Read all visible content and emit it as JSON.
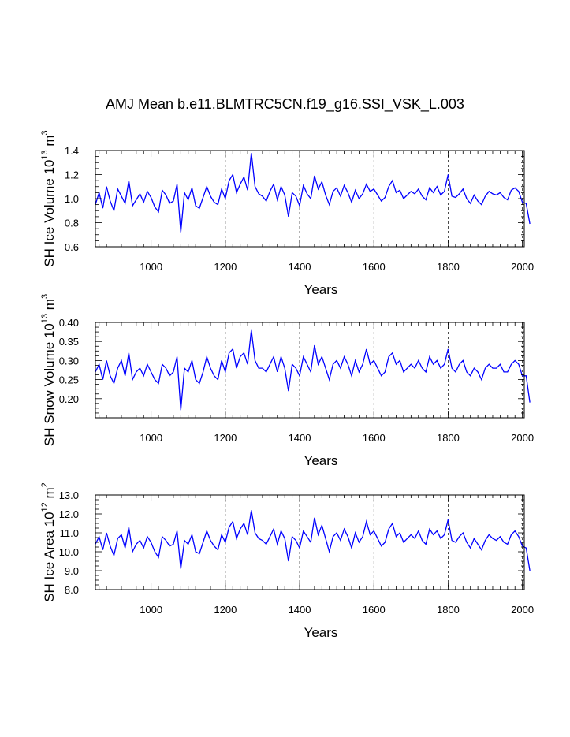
{
  "title": "AMJ Mean b.e11.BLMTRC5CN.f19_g16.SSI_VSK_L.003",
  "chart_data": [
    {
      "type": "line",
      "ylabel": "SH Ice Volume 10",
      "ylabel_exp": "13",
      "ylabel_unit": " m",
      "ylabel_unit_exp": "3",
      "xlabel": "Years",
      "xlim": [
        850,
        2005
      ],
      "ylim": [
        0.6,
        1.4
      ],
      "xticks": [
        1000,
        1200,
        1400,
        1600,
        1800,
        2000
      ],
      "xtick_labels": [
        "1000",
        "1200",
        "1400",
        "1600",
        "1800",
        "2000"
      ],
      "yticks": [
        0.6,
        0.8,
        1.0,
        1.2,
        1.4
      ],
      "ytick_labels": [
        "0.6",
        "0.8",
        "1.0",
        "1.2",
        "1.4"
      ],
      "grid": "dashed vertical at x ticks",
      "color": "#0000ff",
      "series": [
        {
          "x_start": 850,
          "x_step": 10,
          "values": [
            0.95,
            1.05,
            0.92,
            1.1,
            0.98,
            0.9,
            1.08,
            1.02,
            0.96,
            1.15,
            0.94,
            0.99,
            1.04,
            0.97,
            1.06,
            1.01,
            0.93,
            0.89,
            1.07,
            1.03,
            0.96,
            0.98,
            1.12,
            0.72,
            1.05,
            0.99,
            1.09,
            0.94,
            0.92,
            1.01,
            1.1,
            1.02,
            0.97,
            0.95,
            1.08,
            1.0,
            1.15,
            1.2,
            1.05,
            1.12,
            1.18,
            1.07,
            1.38,
            1.1,
            1.04,
            1.02,
            0.98,
            1.06,
            1.12,
            0.99,
            1.1,
            1.03,
            0.85,
            1.05,
            1.02,
            0.94,
            1.11,
            1.04,
            1.0,
            1.19,
            1.08,
            1.14,
            1.03,
            0.95,
            1.06,
            1.09,
            1.02,
            1.11,
            1.05,
            0.97,
            1.07,
            1.0,
            1.04,
            1.12,
            1.06,
            1.08,
            1.03,
            0.98,
            1.01,
            1.1,
            1.15,
            1.05,
            1.07,
            1.0,
            1.03,
            1.06,
            1.04,
            1.08,
            1.02,
            0.99,
            1.09,
            1.05,
            1.1,
            1.03,
            1.06,
            1.2,
            1.02,
            1.01,
            1.04,
            1.08,
            1.0,
            0.96,
            1.03,
            0.98,
            0.95,
            1.02,
            1.06,
            1.04,
            1.03,
            1.05,
            1.01,
            0.99,
            1.07,
            1.09,
            1.06,
            0.97,
            0.96,
            0.79
          ]
        }
      ]
    },
    {
      "type": "line",
      "ylabel": "SH Snow Volume 10",
      "ylabel_exp": "13",
      "ylabel_unit": " m",
      "ylabel_unit_exp": "3",
      "xlabel": "Years",
      "xlim": [
        850,
        2005
      ],
      "ylim": [
        0.15,
        0.4
      ],
      "xticks": [
        1000,
        1200,
        1400,
        1600,
        1800,
        2000
      ],
      "xtick_labels": [
        "1000",
        "1200",
        "1400",
        "1600",
        "1800",
        "2000"
      ],
      "yticks": [
        0.2,
        0.25,
        0.3,
        0.35,
        0.4
      ],
      "ytick_labels": [
        "0.20",
        "0.25",
        "0.30",
        "0.35",
        "0.40"
      ],
      "grid": "dashed vertical at x ticks",
      "color": "#0000ff",
      "series": [
        {
          "x_start": 850,
          "x_step": 10,
          "values": [
            0.27,
            0.29,
            0.25,
            0.3,
            0.26,
            0.24,
            0.28,
            0.3,
            0.26,
            0.32,
            0.25,
            0.27,
            0.28,
            0.26,
            0.29,
            0.27,
            0.25,
            0.24,
            0.29,
            0.28,
            0.26,
            0.27,
            0.31,
            0.17,
            0.28,
            0.27,
            0.3,
            0.25,
            0.24,
            0.27,
            0.31,
            0.28,
            0.26,
            0.25,
            0.3,
            0.27,
            0.32,
            0.33,
            0.28,
            0.31,
            0.32,
            0.29,
            0.38,
            0.3,
            0.28,
            0.28,
            0.27,
            0.29,
            0.31,
            0.27,
            0.31,
            0.28,
            0.22,
            0.29,
            0.28,
            0.26,
            0.31,
            0.29,
            0.27,
            0.34,
            0.29,
            0.31,
            0.28,
            0.25,
            0.29,
            0.3,
            0.28,
            0.31,
            0.29,
            0.26,
            0.3,
            0.27,
            0.29,
            0.33,
            0.29,
            0.3,
            0.28,
            0.26,
            0.27,
            0.31,
            0.32,
            0.29,
            0.3,
            0.27,
            0.28,
            0.29,
            0.28,
            0.3,
            0.28,
            0.27,
            0.31,
            0.29,
            0.3,
            0.28,
            0.29,
            0.33,
            0.28,
            0.27,
            0.29,
            0.3,
            0.27,
            0.26,
            0.28,
            0.27,
            0.25,
            0.28,
            0.29,
            0.28,
            0.28,
            0.29,
            0.27,
            0.27,
            0.29,
            0.3,
            0.29,
            0.26,
            0.26,
            0.19
          ]
        }
      ]
    },
    {
      "type": "line",
      "ylabel": "SH Ice Area 10",
      "ylabel_exp": "12",
      "ylabel_unit": " m",
      "ylabel_unit_exp": "2",
      "xlabel": "Years",
      "xlim": [
        850,
        2005
      ],
      "ylim": [
        8.0,
        13.0
      ],
      "xticks": [
        1000,
        1200,
        1400,
        1600,
        1800,
        2000
      ],
      "xtick_labels": [
        "1000",
        "1200",
        "1400",
        "1600",
        "1800",
        "2000"
      ],
      "yticks": [
        8.0,
        9.0,
        10.0,
        11.0,
        12.0,
        13.0
      ],
      "ytick_labels": [
        "8.0",
        "9.0",
        "10.0",
        "11.0",
        "12.0",
        "13.0"
      ],
      "grid": "dashed vertical at x ticks",
      "color": "#0000ff",
      "series": [
        {
          "x_start": 850,
          "x_step": 10,
          "values": [
            10.4,
            10.8,
            10.1,
            11.0,
            10.3,
            9.8,
            10.7,
            10.9,
            10.2,
            11.3,
            10.0,
            10.4,
            10.6,
            10.2,
            10.8,
            10.5,
            10.0,
            9.7,
            10.8,
            10.6,
            10.3,
            10.4,
            11.1,
            9.1,
            10.6,
            10.4,
            10.9,
            10.0,
            9.9,
            10.5,
            11.1,
            10.6,
            10.3,
            10.1,
            10.9,
            10.5,
            11.3,
            11.6,
            10.7,
            11.2,
            11.5,
            10.9,
            12.2,
            11.0,
            10.7,
            10.6,
            10.4,
            10.8,
            11.2,
            10.4,
            11.1,
            10.7,
            9.5,
            10.8,
            10.6,
            10.2,
            11.1,
            10.8,
            10.5,
            11.8,
            10.9,
            11.4,
            10.7,
            10.0,
            10.8,
            11.0,
            10.6,
            11.2,
            10.8,
            10.2,
            11.0,
            10.5,
            10.8,
            11.6,
            10.9,
            11.1,
            10.7,
            10.3,
            10.5,
            11.2,
            11.5,
            10.8,
            11.0,
            10.5,
            10.7,
            10.9,
            10.7,
            11.1,
            10.6,
            10.4,
            11.2,
            10.9,
            11.1,
            10.7,
            10.9,
            11.7,
            10.6,
            10.5,
            10.8,
            11.0,
            10.5,
            10.2,
            10.7,
            10.4,
            10.1,
            10.6,
            10.9,
            10.7,
            10.6,
            10.8,
            10.5,
            10.4,
            10.9,
            11.1,
            10.8,
            10.3,
            10.2,
            9.0
          ]
        }
      ]
    }
  ]
}
